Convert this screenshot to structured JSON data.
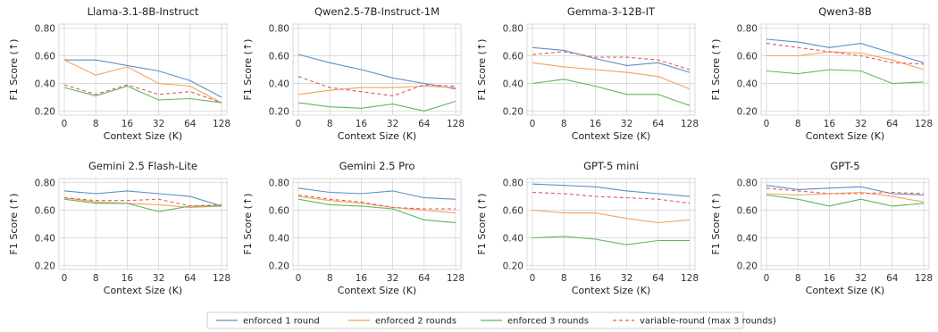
{
  "chart_data": {
    "type": "line",
    "ylabel": "F1 Score (↑)",
    "xlabel": "Context Size (K)",
    "x": [
      "0",
      "8",
      "16",
      "32",
      "64",
      "128"
    ],
    "ylim": [
      0.17,
      0.83
    ],
    "yticks": [
      "0.20",
      "0.40",
      "0.60",
      "0.80"
    ],
    "grid": true,
    "legend_position": "bottom",
    "series_styles": [
      {
        "name": "enforced 1 round",
        "color": "#5b8fc7",
        "dash": ""
      },
      {
        "name": "enforced 2 rounds",
        "color": "#f5a15a",
        "dash": ""
      },
      {
        "name": "enforced 3 rounds",
        "color": "#5cb85c",
        "dash": ""
      },
      {
        "name": "variable-round (max 3 rounds)",
        "color": "#e05a5a",
        "dash": "4,3"
      }
    ],
    "panels": [
      {
        "title": "Llama-3.1-8B-Instruct",
        "series": [
          [
            0.57,
            0.57,
            0.53,
            0.49,
            0.42,
            0.3
          ],
          [
            0.57,
            0.46,
            0.52,
            0.4,
            0.38,
            0.26
          ],
          [
            0.37,
            0.31,
            0.38,
            0.28,
            0.29,
            0.26
          ],
          [
            0.39,
            0.32,
            0.39,
            0.32,
            0.34,
            0.26
          ]
        ]
      },
      {
        "title": "Qwen2.5-7B-Instruct-1M",
        "series": [
          [
            0.61,
            0.55,
            0.5,
            0.44,
            0.4,
            0.36
          ],
          [
            0.32,
            0.35,
            0.37,
            0.37,
            0.38,
            0.37
          ],
          [
            0.26,
            0.23,
            0.22,
            0.25,
            0.2,
            0.27
          ],
          [
            0.45,
            0.37,
            0.34,
            0.31,
            0.39,
            0.38
          ]
        ]
      },
      {
        "title": "Gemma-3-12B-IT",
        "series": [
          [
            0.66,
            0.64,
            0.58,
            0.53,
            0.55,
            0.48
          ],
          [
            0.55,
            0.52,
            0.5,
            0.48,
            0.45,
            0.36
          ],
          [
            0.4,
            0.43,
            0.38,
            0.32,
            0.32,
            0.24
          ],
          [
            0.61,
            0.63,
            0.59,
            0.59,
            0.57,
            0.5
          ]
        ]
      },
      {
        "title": "Qwen3-8B",
        "series": [
          [
            0.72,
            0.7,
            0.66,
            0.69,
            0.62,
            0.55
          ],
          [
            0.6,
            0.6,
            0.63,
            0.62,
            0.57,
            0.5
          ],
          [
            0.49,
            0.47,
            0.5,
            0.49,
            0.4,
            0.41
          ],
          [
            0.69,
            0.66,
            0.63,
            0.6,
            0.55,
            0.54
          ]
        ]
      },
      {
        "title": "Gemini 2.5 Flash-Lite",
        "series": [
          [
            0.74,
            0.72,
            0.74,
            0.72,
            0.7,
            0.63
          ],
          [
            0.69,
            0.66,
            0.65,
            0.64,
            0.62,
            0.63
          ],
          [
            0.68,
            0.65,
            0.65,
            0.59,
            0.63,
            0.63
          ],
          [
            0.69,
            0.67,
            0.67,
            0.68,
            0.63,
            0.64
          ]
        ]
      },
      {
        "title": "Gemini 2.5 Pro",
        "series": [
          [
            0.76,
            0.73,
            0.72,
            0.74,
            0.69,
            0.68
          ],
          [
            0.7,
            0.67,
            0.65,
            0.62,
            0.6,
            0.58
          ],
          [
            0.68,
            0.64,
            0.63,
            0.61,
            0.53,
            0.51
          ],
          [
            0.71,
            0.68,
            0.66,
            0.62,
            0.61,
            0.61
          ]
        ]
      },
      {
        "title": "GPT-5 mini",
        "series": [
          [
            0.79,
            0.78,
            0.77,
            0.74,
            0.72,
            0.7
          ],
          [
            0.6,
            0.58,
            0.58,
            0.54,
            0.51,
            0.53
          ],
          [
            0.4,
            0.41,
            0.39,
            0.35,
            0.38,
            0.38
          ],
          [
            0.73,
            0.72,
            0.7,
            0.69,
            0.68,
            0.65
          ]
        ]
      },
      {
        "title": "GPT-5",
        "series": [
          [
            0.78,
            0.75,
            0.76,
            0.77,
            0.72,
            0.71
          ],
          [
            0.72,
            0.71,
            0.72,
            0.73,
            0.7,
            0.66
          ],
          [
            0.71,
            0.68,
            0.63,
            0.68,
            0.63,
            0.65
          ],
          [
            0.76,
            0.74,
            0.72,
            0.72,
            0.73,
            0.72
          ]
        ]
      }
    ]
  }
}
